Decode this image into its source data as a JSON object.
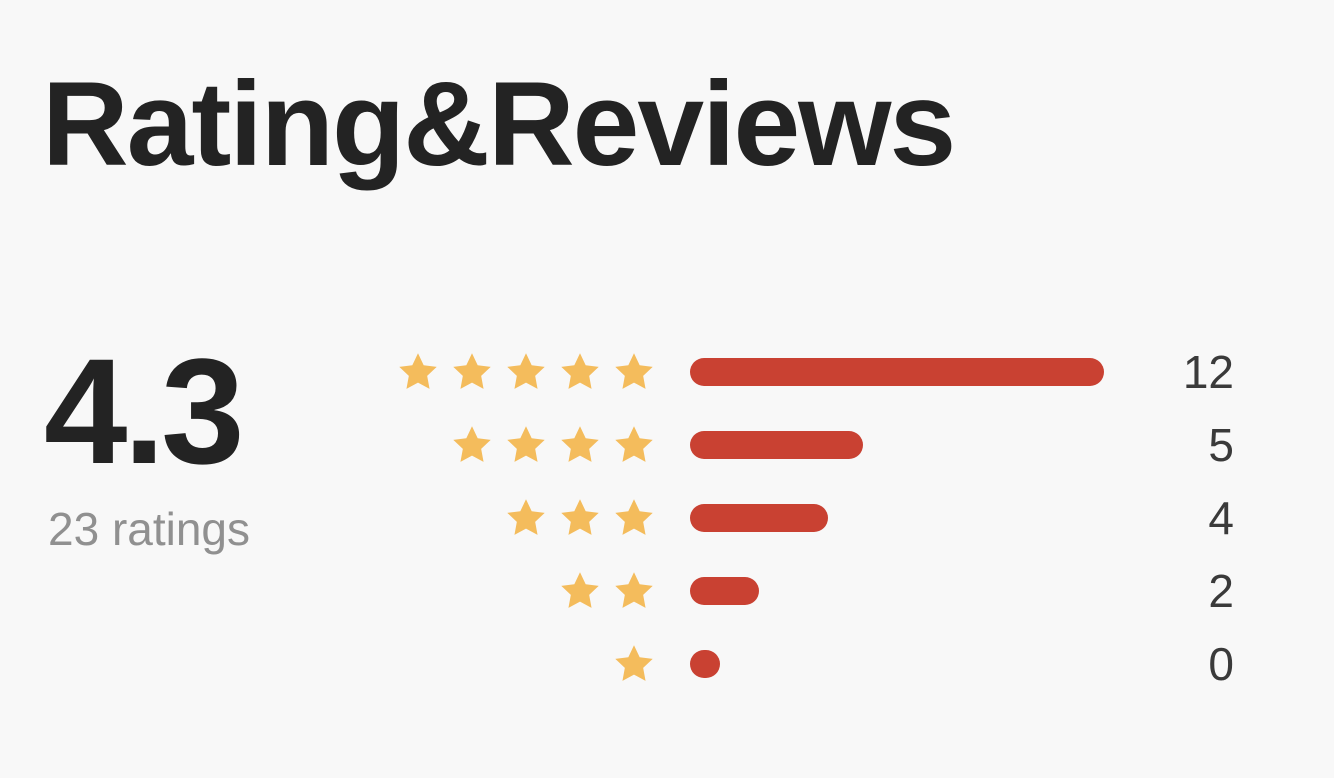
{
  "header": {
    "title": "Rating&Reviews"
  },
  "summary": {
    "average": "4.3",
    "ratings_label": "23 ratings"
  },
  "colors": {
    "star": "#f4bc5c",
    "bar": "#c94132"
  },
  "distribution": [
    {
      "stars": 5,
      "count": 12,
      "label": "12"
    },
    {
      "stars": 4,
      "count": 5,
      "label": "5"
    },
    {
      "stars": 3,
      "count": 4,
      "label": "4"
    },
    {
      "stars": 2,
      "count": 2,
      "label": "2"
    },
    {
      "stars": 1,
      "count": 0,
      "label": "0"
    }
  ],
  "icons": {
    "star": "star-icon"
  }
}
